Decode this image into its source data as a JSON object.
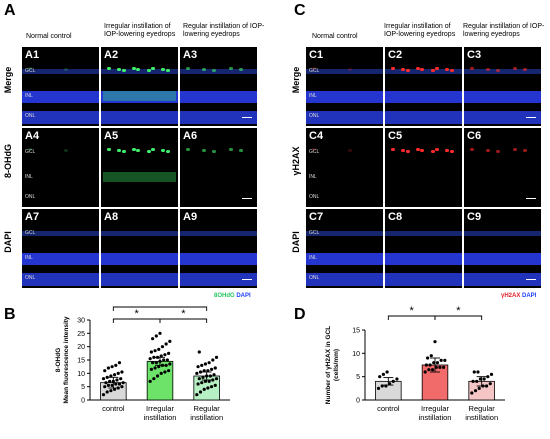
{
  "panels": {
    "A": "A",
    "B": "B",
    "C": "C",
    "D": "D"
  },
  "left_cols": [
    "Normal control",
    "Irregular instillation of IOP-lowering eyedrops",
    "Regular instillation of IOP-lowering eyedrops"
  ],
  "right_cols": [
    "Normal control",
    "Irregular instillation of IOP-lowering eyedrops",
    "Regular instillation of IOP-lowering eyedrops"
  ],
  "left_rows": [
    "Merge",
    "8-OHdG",
    "DAPI"
  ],
  "right_rows": [
    "Merge",
    "γH2AX",
    "DAPI"
  ],
  "left_tags": [
    "A1",
    "A2",
    "A3",
    "A4",
    "A5",
    "A6",
    "A7",
    "A8",
    "A9"
  ],
  "right_tags": [
    "C1",
    "C2",
    "C3",
    "C4",
    "C5",
    "C6",
    "C7",
    "C8",
    "C9"
  ],
  "layers": {
    "gcl": "GCL",
    "inl": "INL",
    "onl": "ONL"
  },
  "legend_left": {
    "marker": "8OHdG",
    "dapi": "DAPI",
    "marker_color": "#22c55e",
    "dapi_color": "#1d3fff"
  },
  "legend_right": {
    "marker": "γH2AX",
    "dapi": "DAPI",
    "marker_color": "#e11d2a",
    "dapi_color": "#1d3fff"
  },
  "colors": {
    "control": "#d9d9d9",
    "irregular": "#6ee36a",
    "regular": "#b7f0c4",
    "d_control": "#d9d9d9",
    "d_irregular": "#f26b6b",
    "d_regular": "#f6c6c6"
  },
  "chart_data": [
    {
      "type": "bar",
      "categories": [
        "control",
        "Irregular instillation",
        "Regular instillation"
      ],
      "values": [
        6.5,
        14.5,
        9.0
      ],
      "errors": [
        2.0,
        1.5,
        1.5
      ],
      "ylabel": "8-OHdG Mean fluorescence intensity",
      "ylabel_line1": "8-OHdG",
      "ylabel_line2": "Mean fluorescence intensity",
      "ylim": [
        0,
        30
      ],
      "yticks": [
        0,
        5,
        10,
        15,
        20,
        25,
        30
      ],
      "significance": [
        "*",
        "*",
        "*"
      ],
      "points": [
        [
          2,
          3,
          3.5,
          4,
          4.5,
          5,
          5,
          5.5,
          5.5,
          6,
          6,
          6.5,
          6.5,
          7,
          7,
          7.5,
          8,
          8,
          8.5,
          9,
          9.5,
          10,
          10.5,
          11,
          12,
          12.5,
          13,
          14
        ],
        [
          7,
          8,
          9,
          10,
          10.5,
          11,
          11.5,
          12,
          12.5,
          13,
          13,
          13.5,
          14,
          14,
          14.5,
          15,
          15,
          15.5,
          16,
          16,
          16.5,
          17,
          17.5,
          18,
          18.5,
          19,
          20,
          21,
          22,
          23,
          24,
          25
        ],
        [
          2,
          3,
          4,
          4.5,
          5,
          5.5,
          6,
          6.5,
          7,
          7,
          7.5,
          8,
          8,
          8.5,
          9,
          9,
          9.5,
          10,
          10.5,
          11,
          11,
          11.5,
          12,
          12.5,
          13,
          13.5,
          14,
          15,
          16,
          18
        ]
      ]
    },
    {
      "type": "bar",
      "categories": [
        "control",
        "Irregular instillation",
        "Regular instillation"
      ],
      "values": [
        4.0,
        7.5,
        4.0
      ],
      "errors": [
        0.8,
        1.5,
        1.0
      ],
      "ylabel": "Number of γH2AX in GCL (cells/mm)",
      "ylabel_line1": "Number of γH2AX in GCL",
      "ylabel_line2": "(cells/mm)",
      "ylim": [
        0,
        15
      ],
      "yticks": [
        0,
        5,
        10,
        15
      ],
      "significance": [
        "*",
        "*"
      ],
      "points": [
        [
          2.5,
          3,
          3,
          3.5,
          4,
          4.5,
          5,
          5.5,
          6
        ],
        [
          6,
          6.5,
          6.5,
          7,
          7,
          7,
          7.5,
          7.5,
          8,
          8,
          8.5,
          8.5,
          9,
          9.5,
          12.5
        ],
        [
          1.5,
          2,
          2.5,
          3,
          3,
          3.5,
          4,
          4,
          4.5,
          4.5,
          5,
          5.5,
          6,
          6
        ]
      ]
    }
  ]
}
